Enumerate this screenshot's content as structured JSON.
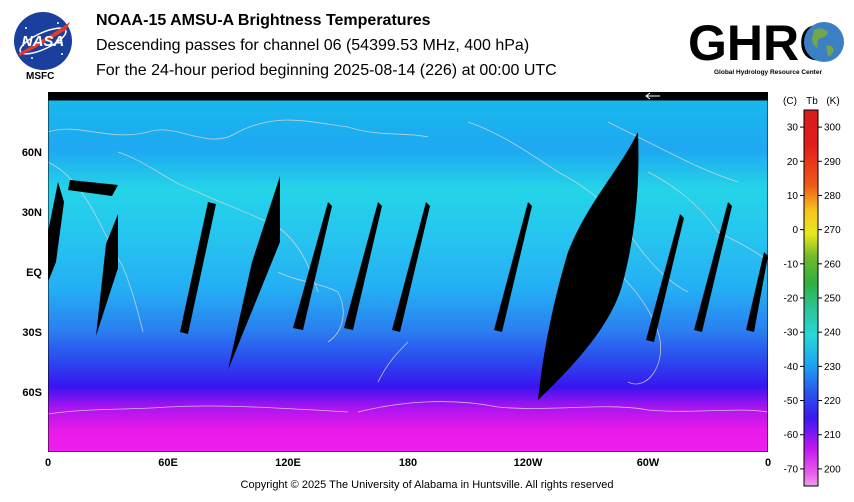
{
  "header": {
    "title": "NOAA-15 AMSU-A Brightness Temperatures",
    "subtitle": "Descending passes for channel 06 (54399.53 MHz, 400 hPa)",
    "period": "For the 24-hour period beginning 2025-08-14 (226) at 00:00 UTC"
  },
  "logos": {
    "nasa_text": "NASA",
    "msfc": "MSFC",
    "ghrc_text": "GHRC",
    "ghrc_sub": "Global Hydrology Resource Center"
  },
  "map": {
    "lat_labels": [
      "60N",
      "30N",
      "EQ",
      "30S",
      "60S"
    ],
    "lon_labels": [
      "0",
      "60E",
      "120E",
      "180",
      "120W",
      "60W",
      "0"
    ]
  },
  "colorbar": {
    "header_c": "(C)",
    "header_tb": "Tb",
    "header_k": "(K)",
    "celsius_ticks": [
      "30",
      "20",
      "10",
      "0",
      "-10",
      "-20",
      "-30",
      "-40",
      "-50",
      "-60",
      "-70"
    ],
    "kelvin_ticks": [
      "300",
      "290",
      "280",
      "270",
      "260",
      "250",
      "240",
      "230",
      "220",
      "210",
      "200"
    ],
    "k_min": 195,
    "k_max": 305
  },
  "footer": {
    "copyright": "Copyright © 2025 The University of Alabama in Huntsville.  All rights reserved"
  }
}
